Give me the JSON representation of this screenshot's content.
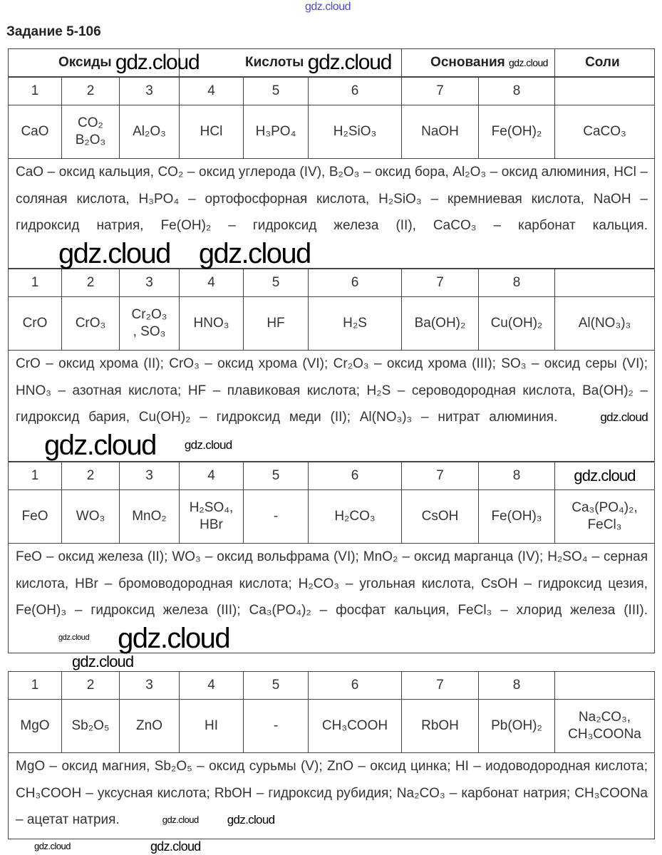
{
  "top_link": "gdz.cloud",
  "title": "Задание 5-106",
  "header": [
    "Оксиды",
    "Кислоты",
    "Основания",
    "Соли"
  ],
  "numbers": [
    "1",
    "2",
    "3",
    "4",
    "5",
    "6",
    "7",
    "8",
    ""
  ],
  "blocks": [
    {
      "formulas": [
        "CaO",
        "CO₂\nB₂O₃",
        "Al₂O₃",
        "HCl",
        "H₃PO₄",
        "H₂SiO₃",
        "NaOH",
        "Fe(OH)₂",
        "CaCO₃"
      ],
      "description": "CaO – оксид кальция, CO₂ – оксид углерода (IV), B₂O₃ – оксид бора, Al₂O₃ – оксид алюминия, HCl – соляная кислота, H₃PO₄ – ортофосфорная кислота, H₂SiO₃ – кремниевая кислота, NaOH – гидроксид натрия, Fe(OH)₂ – гидроксид железа (II), CaCO₃ – карбонат кальция."
    },
    {
      "formulas": [
        "CrO",
        "CrO₃",
        "Cr₂O₃\n, SO₃",
        "HNO₃",
        "HF",
        "H₂S",
        "Ba(OH)₂",
        "Cu(OH)₂",
        "Al(NO₃)₃"
      ],
      "description": "CrO – оксид хрома (II); CrO₃ – оксид хрома (VI); Cr₂O₃ – оксид хрома (III); SO₃ – оксид серы (VI); HNO₃ – азотная кислота; HF – плавиковая кислота; H₂S – сероводородная кислота, Ba(OH)₂ – гидроксид бария, Cu(OH)₂ – гидроксид меди (II); Al(NO₃)₃ – нитрат алюминия."
    },
    {
      "formulas": [
        "FeO",
        "WO₃",
        "MnO₂",
        "H₂SO₄,\nHBr",
        "-",
        "H₂CO₃",
        "CsOH",
        "Fe(OH)₃",
        "Ca₃(PO₄)₂,\nFeCl₃"
      ],
      "description": "FeO – оксид железа (II); WO₃ – оксид вольфрама (VI); MnO₂ – оксид марганца (IV); H₂SO₄ – серная кислота, HBr – бромоводородная кислота; H₂CO₃ – угольная кислота, CsOH – гидроксид цезия, Fe(OH)₃ – гидроксид железа (III); Ca₃(PO₄)₂ – фосфат кальция, FeCl₃ – хлорид железа (III)."
    },
    {
      "formulas": [
        "MgO",
        "Sb₂O₅",
        "ZnO",
        "HI",
        "-",
        "CH₃COOH",
        "RbOH",
        "Pb(OH)₂",
        "Na₂CO₃,\nCH₃COONa"
      ],
      "description": "MgO – оксид магния, Sb₂O₅ – оксид сурьмы (V); ZnO – оксид цинка; HI – иодоводородная кислота; CH₃COOH – уксусная кислота; RbOH – гидроксид рубидия; Na₂CO₃ – карбонат натрия; CH₃COONa – ацетат натрия."
    }
  ],
  "watermarks": [
    "gdz.cloud",
    "gdz.cloud",
    "gdz.cloud",
    "gdz.cloud",
    "gdz.cloud",
    "gdz.cloud",
    "gdz.cloud",
    "gdz.cloud",
    "gdz.cloud",
    "gdz.cloud",
    "gdz.cloud",
    "gdz.cloud",
    "gdz.cloud",
    "gdz.cloud",
    "gdz.cloud",
    "gdz.cloud"
  ]
}
